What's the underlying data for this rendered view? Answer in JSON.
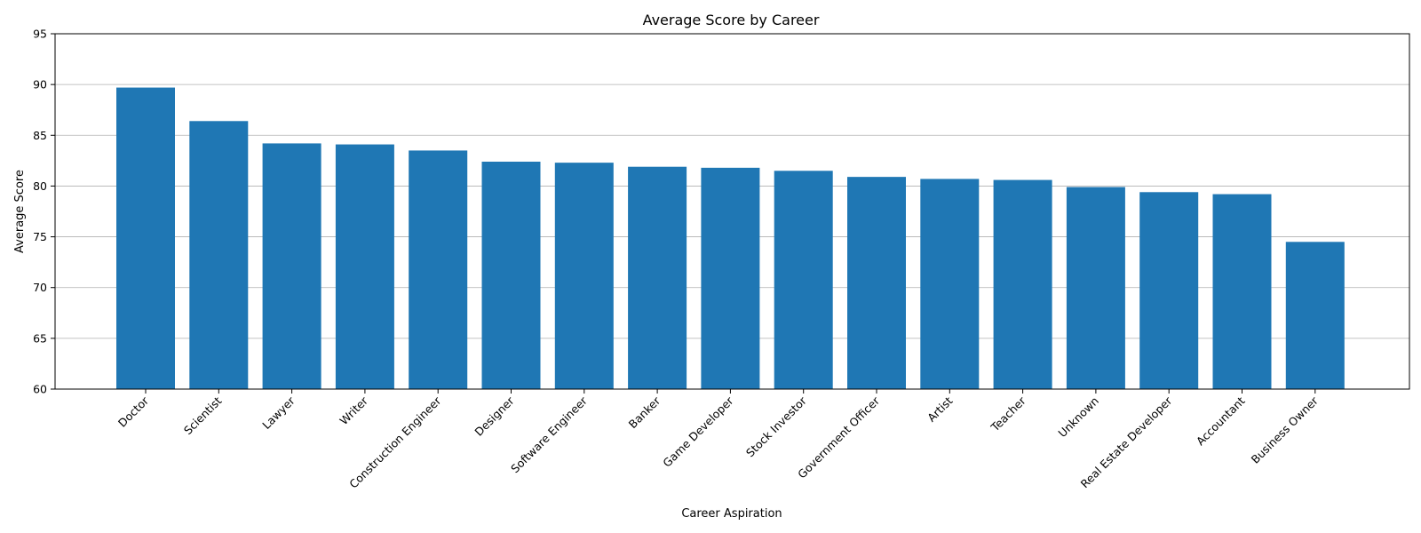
{
  "chart_data": {
    "type": "bar",
    "title": "Average Score by Career",
    "xlabel": "Career Aspiration",
    "ylabel": "Average Score",
    "ylim": [
      60,
      95
    ],
    "yticks": [
      60,
      65,
      70,
      75,
      80,
      85,
      90,
      95
    ],
    "grid": "y",
    "bar_color": "#1f77b4",
    "categories": [
      "Doctor",
      "Scientist",
      "Lawyer",
      "Writer",
      "Construction Engineer",
      "Designer",
      "Software Engineer",
      "Banker",
      "Game Developer",
      "Stock Investor",
      "Government Officer",
      "Artist",
      "Teacher",
      "Unknown",
      "Real Estate Developer",
      "Accountant",
      "Business Owner"
    ],
    "values": [
      89.7,
      86.4,
      84.2,
      84.1,
      83.5,
      82.4,
      82.3,
      81.9,
      81.8,
      81.5,
      80.9,
      80.7,
      80.6,
      79.9,
      79.4,
      79.2,
      74.5
    ]
  }
}
